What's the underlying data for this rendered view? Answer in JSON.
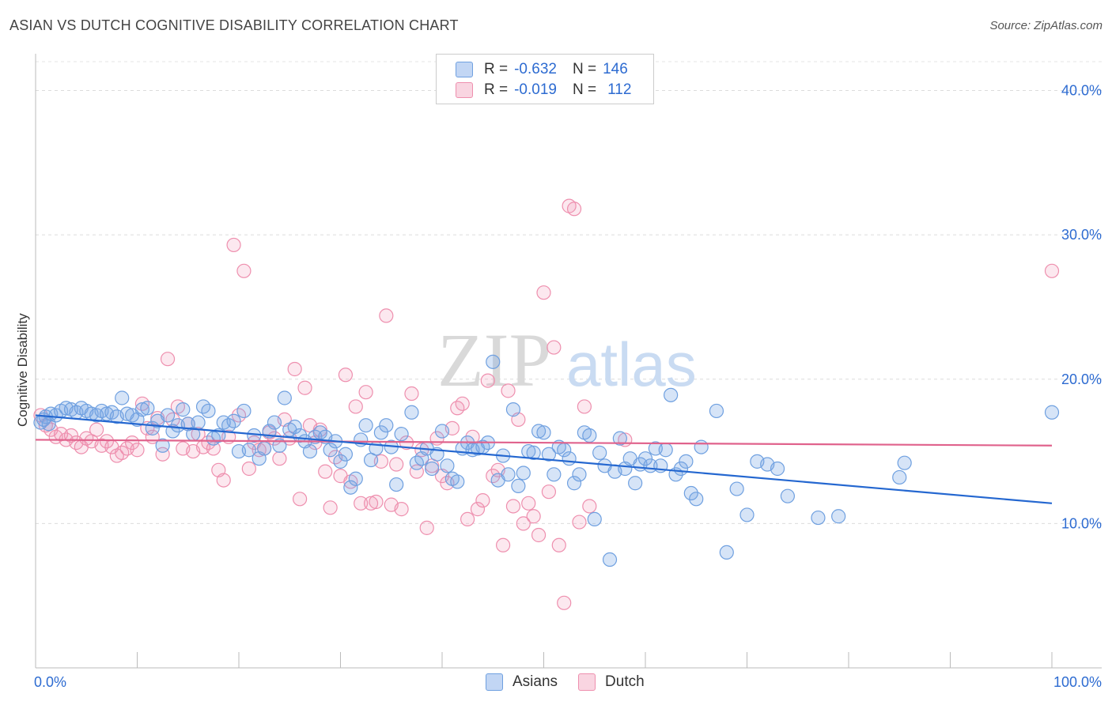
{
  "header": {
    "title": "ASIAN VS DUTCH COGNITIVE DISABILITY CORRELATION CHART",
    "source": "Source: ZipAtlas.com"
  },
  "legend": {
    "rows": [
      {
        "r_label": "R =",
        "r_value": "-0.632",
        "n_label": "N =",
        "n_value": "146"
      },
      {
        "r_label": "R =",
        "r_value": "-0.019",
        "n_label": "N =",
        "n_value": "112"
      }
    ]
  },
  "colors": {
    "asians": "#6fa0e0",
    "asians_fill": "rgba(120,165,230,0.30)",
    "asians_line": "#2467d0",
    "dutch": "#ee8fae",
    "dutch_fill": "rgba(240,150,180,0.22)",
    "dutch_line": "#e0628c",
    "accent_text": "#2d6bd1"
  },
  "watermark": {
    "zip": "ZIP",
    "atlas": "atlas"
  },
  "chart_data": {
    "type": "scatter",
    "title": "ASIAN VS DUTCH COGNITIVE DISABILITY CORRELATION CHART",
    "xlabel": "",
    "ylabel": "Cognitive Disability",
    "xlim": [
      0,
      100
    ],
    "ylim": [
      0,
      42
    ],
    "x_tick_labels": [
      "0.0%",
      "100.0%"
    ],
    "y_tick_labels": [
      "10.0%",
      "20.0%",
      "30.0%",
      "40.0%"
    ],
    "y_ticks": [
      10,
      20,
      30,
      40
    ],
    "grid": true,
    "legend_position": "top-center",
    "series": [
      {
        "name": "Asians",
        "r": -0.632,
        "n": 146,
        "trend": {
          "x": [
            0,
            100
          ],
          "y": [
            17.5,
            11.4
          ]
        },
        "points": [
          [
            0.5,
            17
          ],
          [
            0.8,
            17.2
          ],
          [
            1,
            17.4
          ],
          [
            1.3,
            16.9
          ],
          [
            1.5,
            17.6
          ],
          [
            2,
            17.5
          ],
          [
            2.5,
            17.8
          ],
          [
            3,
            18
          ],
          [
            3.5,
            17.9
          ],
          [
            4,
            17.7
          ],
          [
            4.5,
            18
          ],
          [
            5,
            17.8
          ],
          [
            5.5,
            17.6
          ],
          [
            6,
            17.5
          ],
          [
            6.5,
            17.8
          ],
          [
            7,
            17.6
          ],
          [
            7.5,
            17.7
          ],
          [
            8,
            17.4
          ],
          [
            8.5,
            18.7
          ],
          [
            9,
            17.6
          ],
          [
            9.5,
            17.5
          ],
          [
            10,
            17.2
          ],
          [
            10.5,
            17.9
          ],
          [
            11,
            18
          ],
          [
            11.5,
            16.6
          ],
          [
            12,
            17.1
          ],
          [
            12.5,
            15.4
          ],
          [
            13,
            17.5
          ],
          [
            13.5,
            16.4
          ],
          [
            14,
            16.8
          ],
          [
            14.5,
            17.9
          ],
          [
            15,
            16.9
          ],
          [
            15.5,
            16.2
          ],
          [
            16,
            17.0
          ],
          [
            16.5,
            18.1
          ],
          [
            17,
            17.8
          ],
          [
            17.5,
            15.9
          ],
          [
            18,
            16.1
          ],
          [
            18.5,
            17.0
          ],
          [
            19,
            16.8
          ],
          [
            19.5,
            17.1
          ],
          [
            20,
            15.0
          ],
          [
            20.5,
            17.8
          ],
          [
            21,
            15.1
          ],
          [
            21.5,
            16.1
          ],
          [
            22,
            14.5
          ],
          [
            22.5,
            15.2
          ],
          [
            23,
            16.4
          ],
          [
            23.5,
            17.0
          ],
          [
            24,
            15.4
          ],
          [
            24.5,
            18.7
          ],
          [
            25,
            16.5
          ],
          [
            25.5,
            16.7
          ],
          [
            26,
            16.1
          ],
          [
            26.5,
            15.7
          ],
          [
            27,
            15.0
          ],
          [
            27.5,
            16.0
          ],
          [
            28,
            16.3
          ],
          [
            28.5,
            16.0
          ],
          [
            29,
            15.1
          ],
          [
            29.5,
            15.7
          ],
          [
            30,
            14.3
          ],
          [
            30.5,
            14.8
          ],
          [
            31,
            12.5
          ],
          [
            31.5,
            13.1
          ],
          [
            32,
            15.8
          ],
          [
            32.5,
            16.8
          ],
          [
            33,
            14.4
          ],
          [
            33.5,
            15.2
          ],
          [
            34,
            16.3
          ],
          [
            34.5,
            16.8
          ],
          [
            35,
            15.3
          ],
          [
            35.5,
            12.7
          ],
          [
            36,
            16.2
          ],
          [
            37,
            17.7
          ],
          [
            37.5,
            14.2
          ],
          [
            38,
            14.5
          ],
          [
            38.5,
            15.2
          ],
          [
            39,
            13.8
          ],
          [
            39.5,
            14.8
          ],
          [
            40,
            16.4
          ],
          [
            40.5,
            14.0
          ],
          [
            41,
            13.1
          ],
          [
            41.5,
            12.9
          ],
          [
            42,
            15.2
          ],
          [
            42.5,
            15.6
          ],
          [
            43,
            15.1
          ],
          [
            43.5,
            15.2
          ],
          [
            44,
            15.3
          ],
          [
            44.5,
            15.6
          ],
          [
            45,
            21.2
          ],
          [
            45.5,
            13.0
          ],
          [
            46,
            14.7
          ],
          [
            46.5,
            13.4
          ],
          [
            47,
            17.9
          ],
          [
            47.5,
            12.6
          ],
          [
            48,
            13.5
          ],
          [
            48.5,
            15.0
          ],
          [
            49,
            14.9
          ],
          [
            49.5,
            16.4
          ],
          [
            50,
            16.3
          ],
          [
            50.5,
            14.8
          ],
          [
            51,
            13.4
          ],
          [
            51.5,
            15.3
          ],
          [
            52,
            15.1
          ],
          [
            52.5,
            14.5
          ],
          [
            53,
            12.8
          ],
          [
            53.5,
            13.4
          ],
          [
            54,
            16.3
          ],
          [
            54.5,
            16.1
          ],
          [
            55,
            10.3
          ],
          [
            55.5,
            14.9
          ],
          [
            56,
            14.0
          ],
          [
            56.5,
            7.5
          ],
          [
            57,
            13.6
          ],
          [
            57.5,
            15.9
          ],
          [
            58,
            13.8
          ],
          [
            58.5,
            14.5
          ],
          [
            59,
            12.8
          ],
          [
            59.5,
            14.1
          ],
          [
            60,
            14.5
          ],
          [
            60.5,
            14.0
          ],
          [
            61,
            15.2
          ],
          [
            61.5,
            14.0
          ],
          [
            62,
            15.1
          ],
          [
            62.5,
            18.9
          ],
          [
            63,
            13.4
          ],
          [
            63.5,
            13.8
          ],
          [
            64,
            14.3
          ],
          [
            64.5,
            12.1
          ],
          [
            65,
            11.7
          ],
          [
            65.5,
            15.3
          ],
          [
            67,
            17.8
          ],
          [
            68,
            8.0
          ],
          [
            69,
            12.4
          ],
          [
            70,
            10.6
          ],
          [
            71,
            14.3
          ],
          [
            72,
            14.1
          ],
          [
            73,
            13.8
          ],
          [
            74,
            11.9
          ],
          [
            77,
            10.4
          ],
          [
            79,
            10.5
          ],
          [
            85,
            13.2
          ],
          [
            85.5,
            14.2
          ],
          [
            100,
            17.7
          ]
        ]
      },
      {
        "name": "Dutch",
        "r": -0.019,
        "n": 112,
        "trend": {
          "x": [
            0,
            100
          ],
          "y": [
            15.8,
            15.4
          ]
        },
        "points": [
          [
            0.5,
            17.5
          ],
          [
            1,
            16.8
          ],
          [
            1.5,
            16.5
          ],
          [
            2,
            16.0
          ],
          [
            2.5,
            16.2
          ],
          [
            3,
            15.8
          ],
          [
            3.5,
            16.1
          ],
          [
            4,
            15.6
          ],
          [
            4.5,
            15.3
          ],
          [
            5,
            15.9
          ],
          [
            5.5,
            15.7
          ],
          [
            6,
            16.5
          ],
          [
            6.5,
            15.4
          ],
          [
            7,
            15.7
          ],
          [
            7.5,
            15.3
          ],
          [
            8,
            14.7
          ],
          [
            8.5,
            14.9
          ],
          [
            9,
            15.2
          ],
          [
            9.5,
            15.6
          ],
          [
            10,
            15.1
          ],
          [
            10.5,
            18.3
          ],
          [
            11,
            16.6
          ],
          [
            11.5,
            16.0
          ],
          [
            12,
            17.3
          ],
          [
            12.5,
            14.8
          ],
          [
            13,
            21.4
          ],
          [
            13.5,
            17.2
          ],
          [
            14,
            18.1
          ],
          [
            14.5,
            15.2
          ],
          [
            15,
            16.9
          ],
          [
            15.5,
            15.0
          ],
          [
            16,
            16.2
          ],
          [
            16.5,
            15.3
          ],
          [
            17,
            15.6
          ],
          [
            17.5,
            15.2
          ],
          [
            18,
            13.7
          ],
          [
            18.5,
            13.0
          ],
          [
            19,
            16.0
          ],
          [
            19.5,
            29.3
          ],
          [
            20,
            17.5
          ],
          [
            20.5,
            27.5
          ],
          [
            21,
            13.8
          ],
          [
            21.5,
            15.6
          ],
          [
            22,
            15.1
          ],
          [
            22.5,
            15.2
          ],
          [
            23,
            16.3
          ],
          [
            23.5,
            15.9
          ],
          [
            24,
            14.5
          ],
          [
            24.5,
            17.2
          ],
          [
            25,
            15.9
          ],
          [
            25.5,
            20.7
          ],
          [
            26,
            11.7
          ],
          [
            26.5,
            19.4
          ],
          [
            27,
            16.8
          ],
          [
            27.5,
            15.6
          ],
          [
            28,
            16.5
          ],
          [
            28.5,
            13.6
          ],
          [
            29,
            11.1
          ],
          [
            29.5,
            14.6
          ],
          [
            30,
            13.3
          ],
          [
            30.5,
            20.3
          ],
          [
            31,
            12.9
          ],
          [
            31.5,
            18.1
          ],
          [
            32,
            11.4
          ],
          [
            32.5,
            19.1
          ],
          [
            33,
            11.4
          ],
          [
            33.5,
            11.5
          ],
          [
            34,
            14.3
          ],
          [
            34.5,
            24.4
          ],
          [
            35,
            11.3
          ],
          [
            35.5,
            14.1
          ],
          [
            36,
            11.0
          ],
          [
            36.5,
            15.6
          ],
          [
            37,
            19.0
          ],
          [
            37.5,
            13.6
          ],
          [
            38,
            15.1
          ],
          [
            38.5,
            9.7
          ],
          [
            39,
            14.0
          ],
          [
            39.5,
            15.9
          ],
          [
            40,
            13.3
          ],
          [
            40.5,
            12.8
          ],
          [
            41,
            16.6
          ],
          [
            41.5,
            18.0
          ],
          [
            42,
            18.3
          ],
          [
            42.5,
            10.3
          ],
          [
            43,
            16.0
          ],
          [
            43.5,
            11.0
          ],
          [
            44,
            11.6
          ],
          [
            44.5,
            19.9
          ],
          [
            45,
            13.3
          ],
          [
            45.5,
            13.7
          ],
          [
            46,
            8.5
          ],
          [
            46.5,
            19.2
          ],
          [
            47,
            11.2
          ],
          [
            47.5,
            17.2
          ],
          [
            48,
            10.0
          ],
          [
            48.5,
            11.4
          ],
          [
            49,
            10.5
          ],
          [
            49.5,
            9.2
          ],
          [
            50,
            26.0
          ],
          [
            50.5,
            12.2
          ],
          [
            51,
            22.2
          ],
          [
            51.5,
            8.5
          ],
          [
            52,
            4.5
          ],
          [
            52.5,
            32.0
          ],
          [
            53,
            31.8
          ],
          [
            53.5,
            10.1
          ],
          [
            54,
            18.1
          ],
          [
            54.5,
            11.2
          ],
          [
            58,
            15.8
          ],
          [
            100,
            27.5
          ]
        ]
      }
    ]
  },
  "bottom_legend": {
    "asians": "Asians",
    "dutch": "Dutch"
  }
}
